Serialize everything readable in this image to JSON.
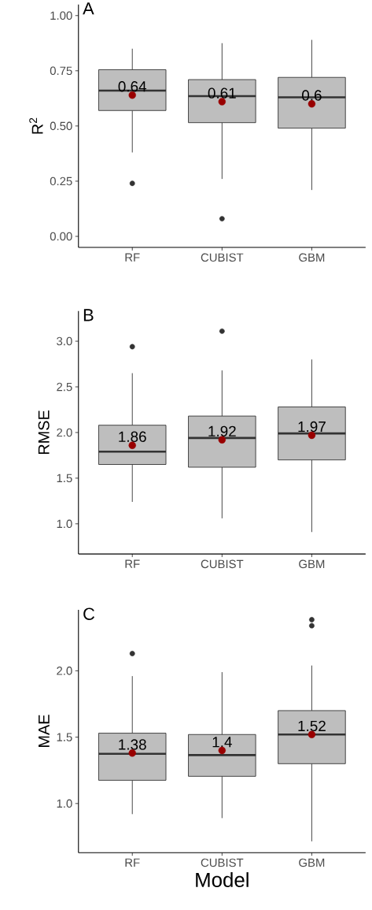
{
  "chart_data": [
    {
      "type": "box",
      "title": "A",
      "ylabel": "R$^{2}$",
      "categories": [
        "RF",
        "CUBIST",
        "GBM"
      ],
      "ylim": [
        -0.05,
        1.05
      ],
      "yticks": [
        {
          "value": 0,
          "label": "0.00"
        },
        {
          "value": 0.25,
          "label": "0.25"
        },
        {
          "value": 0.5,
          "label": "0.50"
        },
        {
          "value": 0.75,
          "label": "0.75"
        },
        {
          "value": 1,
          "label": "1.00"
        }
      ],
      "series": [
        {
          "color": "#bebebe",
          "boxes": [
            {
              "low": 0.38,
              "q1": 0.57,
              "median": 0.66,
              "q3": 0.755,
              "high": 0.85,
              "outliers": [
                0.24
              ]
            },
            {
              "low": 0.26,
              "q1": 0.515,
              "median": 0.635,
              "q3": 0.71,
              "high": 0.875,
              "outliers": [
                0.08
              ]
            },
            {
              "low": 0.21,
              "q1": 0.49,
              "median": 0.63,
              "q3": 0.72,
              "high": 0.89
            }
          ]
        },
        {
          "type": "scatter",
          "color": "#990000",
          "marker": "circle",
          "x": [
            "RF",
            "CUBIST",
            "GBM"
          ],
          "values": [
            0.64,
            0.61,
            0.6
          ],
          "value_labels": [
            "0.64",
            "0.61",
            "0.6"
          ]
        }
      ]
    },
    {
      "type": "box",
      "title": "B",
      "ylabel": "RMSE",
      "categories": [
        "RF",
        "CUBIST",
        "GBM"
      ],
      "ylim": [
        0.67,
        3.33
      ],
      "yticks": [
        {
          "value": 1,
          "label": "1.0"
        },
        {
          "value": 1.5,
          "label": "1.5"
        },
        {
          "value": 2,
          "label": "2.0"
        },
        {
          "value": 2.5,
          "label": "2.5"
        },
        {
          "value": 3,
          "label": "3.0"
        }
      ],
      "series": [
        {
          "color": "#bebebe",
          "boxes": [
            {
              "low": 1.24,
              "q1": 1.65,
              "median": 1.79,
              "q3": 2.08,
              "high": 2.65,
              "outliers": [
                2.94
              ]
            },
            {
              "low": 1.06,
              "q1": 1.62,
              "median": 1.94,
              "q3": 2.18,
              "high": 2.68,
              "outliers": [
                3.11
              ]
            },
            {
              "low": 0.91,
              "q1": 1.7,
              "median": 1.99,
              "q3": 2.28,
              "high": 2.8
            }
          ]
        },
        {
          "type": "scatter",
          "color": "#990000",
          "marker": "circle",
          "x": [
            "RF",
            "CUBIST",
            "GBM"
          ],
          "values": [
            1.86,
            1.92,
            1.97
          ],
          "value_labels": [
            "1.86",
            "1.92",
            "1.97"
          ]
        }
      ]
    },
    {
      "type": "box",
      "title": "C",
      "ylabel": "MAE",
      "xlabel": "Model",
      "categories": [
        "RF",
        "CUBIST",
        "GBM"
      ],
      "ylim": [
        0.63,
        2.46
      ],
      "yticks": [
        {
          "value": 1,
          "label": "1.0"
        },
        {
          "value": 1.5,
          "label": "1.5"
        },
        {
          "value": 2,
          "label": "2.0"
        }
      ],
      "series": [
        {
          "color": "#bebebe",
          "boxes": [
            {
              "low": 0.92,
              "q1": 1.175,
              "median": 1.375,
              "q3": 1.53,
              "high": 1.96,
              "outliers": [
                2.13
              ]
            },
            {
              "low": 0.89,
              "q1": 1.205,
              "median": 1.365,
              "q3": 1.52,
              "high": 1.99
            },
            {
              "low": 0.715,
              "q1": 1.3,
              "median": 1.52,
              "q3": 1.7,
              "high": 2.04,
              "outliers": [
                2.34,
                2.385
              ]
            }
          ]
        },
        {
          "type": "scatter",
          "color": "#990000",
          "marker": "circle",
          "x": [
            "RF",
            "CUBIST",
            "GBM"
          ],
          "values": [
            1.38,
            1.4,
            1.52
          ],
          "value_labels": [
            "1.38",
            "1.4",
            "1.52"
          ]
        }
      ]
    }
  ]
}
